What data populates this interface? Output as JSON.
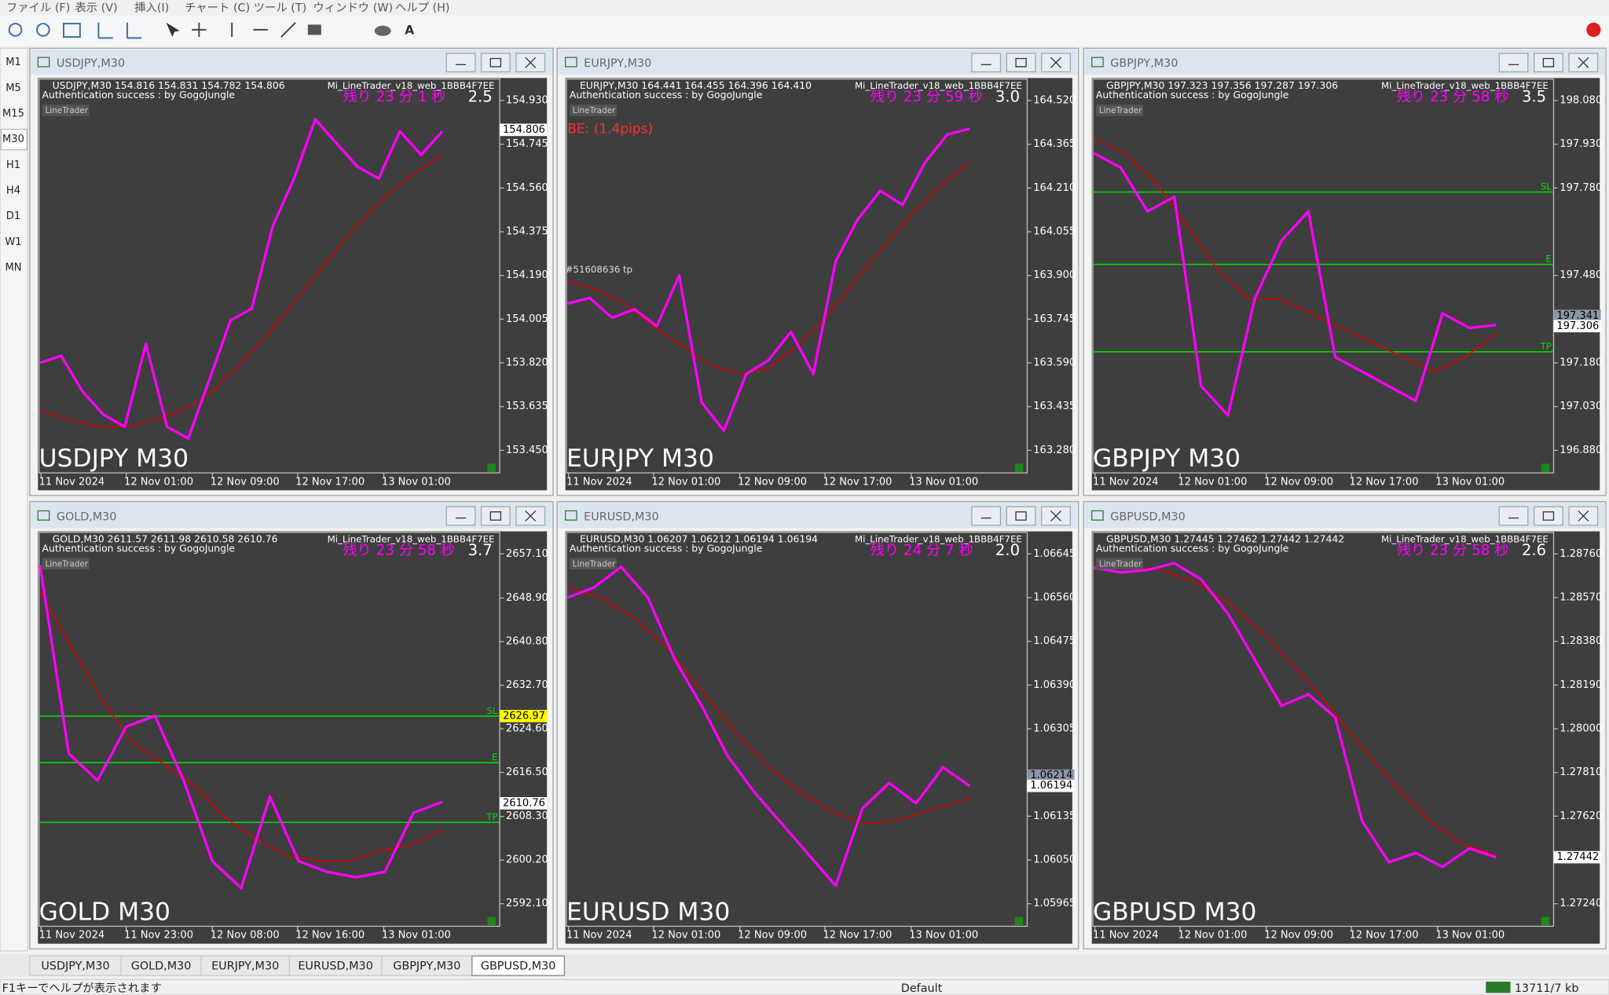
{
  "menu": [
    "ファイル (F)",
    "表示 (V)",
    "挿入(I)",
    "チャート (C)",
    "ツール (T)",
    "ウィンドウ (W)",
    "ヘルプ (H)"
  ],
  "timeframes": [
    "M1",
    "M5",
    "M15",
    "M30",
    "H1",
    "H4",
    "D1",
    "W1",
    "MN"
  ],
  "line_colors": {
    "price": "#ff00ff",
    "ma": "#dd0000",
    "level": "#00dd00"
  },
  "charts": [
    {
      "window_title": "USDJPY,M30",
      "header": "USDJPY,M30  154.816 154.831 154.782 154.806",
      "auth": "Authentication success : by GogoJungle",
      "linetrader": "LineTrader",
      "ea_name": "Mi_LineTrader_v18_web_1BBB4F7EE",
      "countdown": "残り 23 分 1 秒",
      "spread": "2.5",
      "big_label": "USDJPY M30",
      "yticks": [
        {
          "value": 154.93,
          "label": "154.930"
        },
        154.745,
        {
          "value": 154.56,
          "label": "154.560"
        },
        154.375,
        {
          "value": 154.19,
          "label": "154.190"
        },
        154.005,
        {
          "value": 153.82,
          "label": "153.820"
        },
        153.635,
        {
          "value": 153.45,
          "label": "153.450"
        }
      ],
      "xticks": [
        "11 Nov 2024",
        "12 Nov 01:00",
        "12 Nov 09:00",
        "12 Nov 17:00",
        "13 Nov 01:00"
      ],
      "tags": [
        {
          "value": 154.806,
          "color": "#ffffff"
        }
      ],
      "levels": [],
      "notes": [],
      "price": [
        153.82,
        153.85,
        153.7,
        153.6,
        153.55,
        153.9,
        153.55,
        153.5,
        153.75,
        154.0,
        154.05,
        154.4,
        154.6,
        154.85,
        154.75,
        154.65,
        154.6,
        154.8,
        154.7,
        154.8
      ],
      "ma": [
        153.62,
        153.58,
        153.55,
        153.55,
        153.58,
        153.62,
        153.7,
        153.82,
        153.95,
        154.1,
        154.25,
        154.4,
        154.52,
        154.62,
        154.7
      ]
    },
    {
      "window_title": "EURJPY,M30",
      "header": "EURJPY,M30  164.441 164.455 164.396 164.410",
      "auth": "Authentication success : by GogoJungle",
      "linetrader": "LineTrader",
      "ea_name": "Mi_LineTrader_v18_web_1BBB4F7EE",
      "countdown": "残り 23 分 59 秒",
      "spread": "3.0",
      "big_label": "EURJPY M30",
      "yticks": [
        {
          "value": 164.52,
          "label": "164.520"
        },
        164.365,
        {
          "value": 164.21,
          "label": "164.210"
        },
        164.055,
        {
          "value": 163.9,
          "label": "163.900"
        },
        163.745,
        {
          "value": 163.59,
          "label": "163.590"
        },
        163.435,
        {
          "value": 163.28,
          "label": "163.280"
        }
      ],
      "xticks": [
        "11 Nov 2024",
        "12 Nov 01:00",
        "12 Nov 09:00",
        "12 Nov 17:00",
        "13 Nov 01:00"
      ],
      "tags": [],
      "levels": [],
      "notes": [
        "BE: (1.4pips)",
        "#51608636 tp"
      ],
      "price": [
        163.8,
        163.82,
        163.75,
        163.78,
        163.72,
        163.9,
        163.45,
        163.35,
        163.55,
        163.6,
        163.7,
        163.55,
        163.95,
        164.1,
        164.2,
        164.15,
        164.3,
        164.4,
        164.42
      ],
      "ma": [
        163.88,
        163.85,
        163.8,
        163.72,
        163.65,
        163.58,
        163.55,
        163.57,
        163.65,
        163.75,
        163.88,
        164.0,
        164.12,
        164.22,
        164.3
      ]
    },
    {
      "window_title": "GBPJPY,M30",
      "header": "GBPJPY,M30  197.323 197.356 197.287 197.306",
      "auth": "Authentication success : by GogoJungle",
      "linetrader": "LineTrader",
      "ea_name": "Mi_LineTrader_v18_web_1BBB4F7EE",
      "countdown": "残り 23 分 58 秒",
      "spread": "3.5",
      "big_label": "GBPJPY M30",
      "yticks": [
        {
          "value": 198.08,
          "label": "198.080"
        },
        {
          "value": 197.93,
          "label": "197.930"
        },
        {
          "value": 197.78,
          "label": "197.780"
        },
        {
          "value": 197.48,
          "label": "197.480"
        },
        {
          "value": 197.18,
          "label": "197.180"
        },
        {
          "value": 197.03,
          "label": "197.030"
        },
        {
          "value": 196.88,
          "label": "196.880"
        }
      ],
      "xticks": [
        "11 Nov 2024",
        "12 Nov 01:00",
        "12 Nov 09:00",
        "12 Nov 17:00",
        "13 Nov 01:00"
      ],
      "tags": [
        {
          "value": 197.341,
          "color": "#8a96a8"
        },
        {
          "value": 197.306,
          "color": "#ffffff"
        }
      ],
      "levels": [
        {
          "label": "SL",
          "value": 197.766
        },
        {
          "label": "E",
          "value": 197.518
        },
        {
          "label": "TP",
          "value": 197.218
        }
      ],
      "notes": [],
      "price": [
        197.9,
        197.85,
        197.7,
        197.75,
        197.1,
        197.0,
        197.4,
        197.6,
        197.7,
        197.2,
        197.15,
        197.1,
        197.05,
        197.35,
        197.3,
        197.31
      ],
      "ma": [
        197.95,
        197.9,
        197.8,
        197.65,
        197.5,
        197.4,
        197.4,
        197.35,
        197.3,
        197.25,
        197.2,
        197.15,
        197.2,
        197.28
      ]
    },
    {
      "window_title": "GOLD,M30",
      "header": "GOLD,M30  2611.57 2611.98 2610.58 2610.76",
      "auth": "Authentication success : by GogoJungle",
      "linetrader": "LineTrader",
      "ea_name": "Mi_LineTrader_v18_web_1BBB4F7EE",
      "countdown": "残り 23 分 58 秒",
      "spread": "3.7",
      "big_label": "GOLD M30",
      "yticks": [
        {
          "value": 2657.1,
          "label": "2657.10"
        },
        {
          "value": 2648.9,
          "label": "2648.90"
        },
        {
          "value": 2640.8,
          "label": "2640.80"
        },
        {
          "value": 2632.7,
          "label": "2632.70"
        },
        {
          "value": 2624.6,
          "label": "2624.60"
        },
        {
          "value": 2616.5,
          "label": "2616.50"
        },
        {
          "value": 2608.3,
          "label": "2608.30"
        },
        {
          "value": 2600.2,
          "label": "2600.20"
        },
        {
          "value": 2592.1,
          "label": "2592.10"
        }
      ],
      "xticks": [
        "11 Nov 2024",
        "11 Nov 23:00",
        "12 Nov 08:00",
        "12 Nov 16:00",
        "13 Nov 01:00"
      ],
      "tags": [
        {
          "value": 2626.97,
          "color": "#ffff00"
        },
        {
          "value": 2610.76,
          "color": "#ffffff"
        }
      ],
      "levels": [
        {
          "label": "SL",
          "value": 2626.97
        },
        {
          "label": "E",
          "value": 2618.3
        },
        {
          "label": "TP",
          "value": 2607.2
        }
      ],
      "notes": [],
      "price": [
        2655,
        2620,
        2615,
        2625,
        2627,
        2615,
        2600,
        2595,
        2612,
        2600,
        2598,
        2597,
        2598,
        2609,
        2611
      ],
      "ma": [
        2650,
        2640,
        2630,
        2622,
        2618,
        2614,
        2608,
        2604,
        2601,
        2600,
        2600,
        2602,
        2603,
        2606
      ]
    },
    {
      "window_title": "EURUSD,M30",
      "header": "EURUSD,M30  1.06207 1.06212 1.06194 1.06194",
      "auth": "Authentication success : by GogoJungle",
      "linetrader": "LineTrader",
      "ea_name": "Mi_LineTrader_v18_web_1BBB4F7EE",
      "countdown": "残り 24 分 7 秒",
      "spread": "2.0",
      "big_label": "EURUSD M30",
      "yticks": [
        1.06645,
        {
          "value": 1.0656,
          "label": "1.06560"
        },
        1.06475,
        {
          "value": 1.0639,
          "label": "1.06390"
        },
        1.06305,
        1.06135,
        {
          "value": 1.0605,
          "label": "1.06050"
        },
        1.05965
      ],
      "xticks": [
        "11 Nov 2024",
        "12 Nov 01:00",
        "12 Nov 09:00",
        "12 Nov 17:00",
        "13 Nov 01:00"
      ],
      "tags": [
        {
          "value": 1.06214,
          "color": "#8a96a8"
        },
        {
          "value": 1.06194,
          "color": "#ffffff"
        }
      ],
      "levels": [],
      "notes": [],
      "price": [
        1.0656,
        1.0658,
        1.0662,
        1.0656,
        1.0644,
        1.0635,
        1.0625,
        1.0618,
        1.0612,
        1.0606,
        1.06,
        1.0615,
        1.062,
        1.0616,
        1.0623,
        1.06194
      ],
      "ma": [
        1.0658,
        1.0656,
        1.0652,
        1.0646,
        1.0638,
        1.063,
        1.0623,
        1.0618,
        1.0614,
        1.0612,
        1.0613,
        1.0615,
        1.0617
      ]
    },
    {
      "window_title": "GBPUSD,M30",
      "header": "GBPUSD,M30  1.27445 1.27462 1.27442 1.27442",
      "auth": "Authentication success : by GogoJungle",
      "linetrader": "LineTrader",
      "ea_name": "Mi_LineTrader_v18_web_1BBB4F7EE",
      "countdown": "残り 23 分 58 秒",
      "spread": "2.6",
      "big_label": "GBPUSD M30",
      "yticks": [
        {
          "value": 1.2876,
          "label": "1.28760"
        },
        {
          "value": 1.2857,
          "label": "1.28570"
        },
        {
          "value": 1.2838,
          "label": "1.28380"
        },
        {
          "value": 1.2819,
          "label": "1.28190"
        },
        {
          "value": 1.28,
          "label": "1.28000"
        },
        {
          "value": 1.2781,
          "label": "1.27810"
        },
        {
          "value": 1.2762,
          "label": "1.27620"
        },
        {
          "value": 1.2724,
          "label": "1.27240"
        }
      ],
      "xticks": [
        "11 Nov 2024",
        "12 Nov 01:00",
        "12 Nov 09:00",
        "12 Nov 17:00",
        "13 Nov 01:00"
      ],
      "tags": [
        {
          "value": 1.27442,
          "color": "#ffffff"
        }
      ],
      "levels": [],
      "notes": [],
      "price": [
        1.287,
        1.2868,
        1.2869,
        1.2872,
        1.2865,
        1.285,
        1.283,
        1.281,
        1.2815,
        1.2805,
        1.276,
        1.2742,
        1.2746,
        1.274,
        1.2748,
        1.27442
      ],
      "ma": [
        1.2872,
        1.2871,
        1.2869,
        1.2864,
        1.2855,
        1.2842,
        1.2827,
        1.281,
        1.2792,
        1.2775,
        1.276,
        1.275,
        1.2745
      ]
    }
  ],
  "tabs": [
    "USDJPY,M30",
    "GOLD,M30",
    "EURJPY,M30",
    "EURUSD,M30",
    "GBPJPY,M30",
    "GBPUSD,M30"
  ],
  "active_tab": 5,
  "status": {
    "help": "F1キーでヘルプが表示されます",
    "profile": "Default",
    "traffic": "13711/7 kb"
  }
}
